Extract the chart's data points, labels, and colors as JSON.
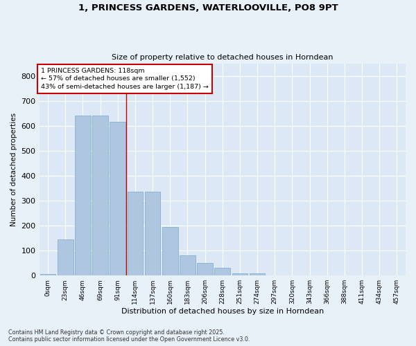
{
  "title1": "1, PRINCESS GARDENS, WATERLOOVILLE, PO8 9PT",
  "title2": "Size of property relative to detached houses in Horndean",
  "xlabel": "Distribution of detached houses by size in Horndean",
  "ylabel": "Number of detached properties",
  "bar_color": "#aec6e0",
  "bar_edge_color": "#7aaac8",
  "background_color": "#dce8f5",
  "grid_color": "#ffffff",
  "fig_bg_color": "#e8f0f8",
  "categories": [
    "0sqm",
    "23sqm",
    "46sqm",
    "69sqm",
    "91sqm",
    "114sqm",
    "137sqm",
    "160sqm",
    "183sqm",
    "206sqm",
    "228sqm",
    "251sqm",
    "274sqm",
    "297sqm",
    "320sqm",
    "343sqm",
    "366sqm",
    "388sqm",
    "411sqm",
    "434sqm",
    "457sqm"
  ],
  "values": [
    5,
    145,
    640,
    640,
    615,
    335,
    335,
    195,
    80,
    50,
    30,
    10,
    10,
    0,
    0,
    0,
    0,
    0,
    0,
    0,
    0
  ],
  "property_line_x": 4.5,
  "annotation_text": "1 PRINCESS GARDENS: 118sqm\n← 57% of detached houses are smaller (1,552)\n43% of semi-detached houses are larger (1,187) →",
  "annotation_box_facecolor": "#ffffff",
  "annotation_box_edgecolor": "#cc0000",
  "vline_color": "#cc0000",
  "ylim": [
    0,
    850
  ],
  "yticks": [
    0,
    100,
    200,
    300,
    400,
    500,
    600,
    700,
    800
  ],
  "footnote1": "Contains HM Land Registry data © Crown copyright and database right 2025.",
  "footnote2": "Contains public sector information licensed under the Open Government Licence v3.0."
}
